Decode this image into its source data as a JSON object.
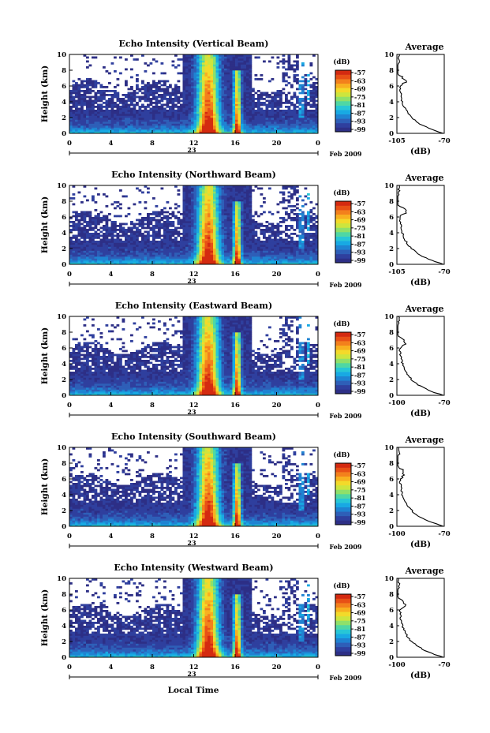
{
  "figure": {
    "xlabel": "Local Time",
    "date_label": "Feb 2009",
    "day_label": "23",
    "colorbar_label": "(dB)",
    "profile_title": "Average",
    "profile_xlabel": "(dB)",
    "ylabel": "Height (km)"
  },
  "chart_data": [
    {
      "type": "heatmap",
      "title": "Echo Intensity (Vertical Beam)",
      "ylabel": "Height (km)",
      "x_ticks": [
        "0",
        "4",
        "8",
        "12",
        "16",
        "20",
        "0"
      ],
      "y_ticks": [
        "0",
        "2",
        "4",
        "6",
        "8",
        "10"
      ],
      "xlim": [
        0,
        24
      ],
      "ylim": [
        0,
        10
      ],
      "colorbar": {
        "label": "(dB)",
        "ticks": [
          "-57",
          "-63",
          "-69",
          "-75",
          "-81",
          "-87",
          "-93",
          "-99"
        ]
      },
      "profile": {
        "title": "Average",
        "xlabel": "(dB)",
        "x_ticks": [
          "-105",
          "-70"
        ],
        "xlim": [
          -105,
          -70
        ],
        "y_ticks": [
          "0",
          "2",
          "4",
          "6",
          "8",
          "10"
        ]
      }
    },
    {
      "type": "heatmap",
      "title": "Echo Intensity (Northward Beam)",
      "ylabel": "Height (km)",
      "x_ticks": [
        "0",
        "4",
        "8",
        "12",
        "16",
        "20",
        "0"
      ],
      "y_ticks": [
        "0",
        "2",
        "4",
        "6",
        "8",
        "10"
      ],
      "xlim": [
        0,
        24
      ],
      "ylim": [
        0,
        10
      ],
      "colorbar": {
        "label": "(dB)",
        "ticks": [
          "-57",
          "-63",
          "-69",
          "-75",
          "-81",
          "-87",
          "-93",
          "-99"
        ]
      },
      "profile": {
        "title": "Average",
        "xlabel": "(dB)",
        "x_ticks": [
          "-105",
          "-70"
        ],
        "xlim": [
          -105,
          -70
        ],
        "y_ticks": [
          "0",
          "2",
          "4",
          "6",
          "8",
          "10"
        ]
      }
    },
    {
      "type": "heatmap",
      "title": "Echo Intensity (Eastward Beam)",
      "ylabel": "Height (km)",
      "x_ticks": [
        "0",
        "4",
        "8",
        "12",
        "16",
        "20",
        "0"
      ],
      "y_ticks": [
        "0",
        "2",
        "4",
        "6",
        "8",
        "10"
      ],
      "xlim": [
        0,
        24
      ],
      "ylim": [
        0,
        10
      ],
      "colorbar": {
        "label": "(dB)",
        "ticks": [
          "-57",
          "-63",
          "-69",
          "-75",
          "-81",
          "-87",
          "-93",
          "-99"
        ]
      },
      "profile": {
        "title": "Average",
        "xlabel": "(dB)",
        "x_ticks": [
          "-100",
          "-70"
        ],
        "xlim": [
          -100,
          -70
        ],
        "y_ticks": [
          "0",
          "2",
          "4",
          "6",
          "8",
          "10"
        ]
      }
    },
    {
      "type": "heatmap",
      "title": "Echo Intensity (Southward Beam)",
      "ylabel": "Height (km)",
      "x_ticks": [
        "0",
        "4",
        "8",
        "12",
        "16",
        "20",
        "0"
      ],
      "y_ticks": [
        "0",
        "2",
        "4",
        "6",
        "8",
        "10"
      ],
      "xlim": [
        0,
        24
      ],
      "ylim": [
        0,
        10
      ],
      "colorbar": {
        "label": "(dB)",
        "ticks": [
          "-57",
          "-63",
          "-69",
          "-75",
          "-81",
          "-87",
          "-93",
          "-99"
        ]
      },
      "profile": {
        "title": "Average",
        "xlabel": "(dB)",
        "x_ticks": [
          "-100",
          "-70"
        ],
        "xlim": [
          -100,
          -70
        ],
        "y_ticks": [
          "0",
          "2",
          "4",
          "6",
          "8",
          "10"
        ]
      }
    },
    {
      "type": "heatmap",
      "title": "Echo Intensity (Westward Beam)",
      "ylabel": "Height (km)",
      "x_ticks": [
        "0",
        "4",
        "8",
        "12",
        "16",
        "20",
        "0"
      ],
      "y_ticks": [
        "0",
        "2",
        "4",
        "6",
        "8",
        "10"
      ],
      "xlim": [
        0,
        24
      ],
      "ylim": [
        0,
        10
      ],
      "colorbar": {
        "label": "(dB)",
        "ticks": [
          "-57",
          "-63",
          "-69",
          "-75",
          "-81",
          "-87",
          "-93",
          "-99"
        ]
      },
      "profile": {
        "title": "Average",
        "xlabel": "(dB)",
        "x_ticks": [
          "-100",
          "-70"
        ],
        "xlim": [
          -100,
          -70
        ],
        "y_ticks": [
          "0",
          "2",
          "4",
          "6",
          "8",
          "10"
        ]
      }
    }
  ],
  "colormap": [
    "#2d2f86",
    "#2f3f9e",
    "#2e5fb8",
    "#1f83d2",
    "#18a9e3",
    "#27c7d6",
    "#4fd7a4",
    "#8fe06a",
    "#cde53e",
    "#f3da2a",
    "#f8b020",
    "#f3801c",
    "#e85016",
    "#d42a10"
  ]
}
